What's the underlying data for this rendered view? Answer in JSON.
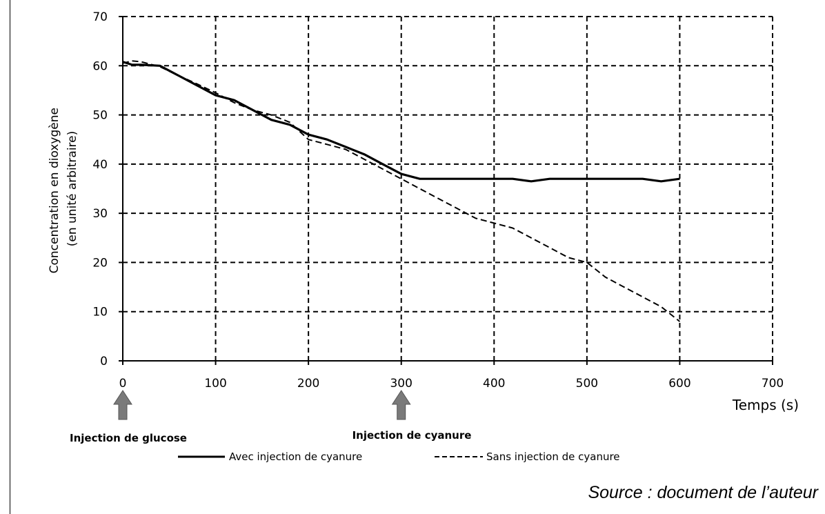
{
  "chart_data": {
    "type": "line",
    "xlabel": "Temps (s)",
    "ylabel_lines": [
      "Concentration en dioxygène",
      "(en unité arbitraire)"
    ],
    "xlim": [
      0,
      700
    ],
    "ylim": [
      0,
      70
    ],
    "xticks": [
      "0",
      "100",
      "200",
      "300",
      "400",
      "500",
      "600",
      "700"
    ],
    "yticks": [
      "0",
      "10",
      "20",
      "30",
      "40",
      "50",
      "60",
      "70"
    ],
    "grid": true,
    "legend_position": "bottom",
    "series": [
      {
        "name": "Avec injection de cyanure",
        "style": "solid",
        "x": [
          0,
          10,
          20,
          40,
          60,
          80,
          100,
          120,
          140,
          160,
          180,
          200,
          220,
          240,
          260,
          280,
          300,
          320,
          340,
          360,
          380,
          400,
          420,
          440,
          460,
          480,
          500,
          520,
          540,
          560,
          580,
          600
        ],
        "y": [
          60.8,
          60.2,
          60.2,
          60,
          58,
          56,
          54,
          53,
          51,
          49,
          48,
          46,
          45,
          43.5,
          42,
          40,
          38,
          37,
          37,
          37,
          37,
          37,
          37,
          36.5,
          37,
          37,
          37,
          37,
          37,
          37,
          36.5,
          37
        ]
      },
      {
        "name": "Sans injection de cyanure",
        "style": "dashed",
        "x": [
          0,
          10,
          20,
          40,
          60,
          80,
          100,
          120,
          140,
          160,
          180,
          200,
          220,
          240,
          260,
          280,
          300,
          320,
          340,
          360,
          380,
          400,
          420,
          440,
          460,
          480,
          500,
          520,
          540,
          560,
          580,
          600
        ],
        "y": [
          60.5,
          61,
          60.8,
          59.8,
          58,
          56.3,
          54.5,
          52.5,
          51,
          50,
          48.5,
          45,
          44,
          43,
          41,
          39,
          37,
          35,
          33,
          31,
          29,
          28,
          27,
          25,
          23,
          21,
          20,
          17,
          15,
          13,
          11,
          8
        ]
      }
    ],
    "annotations": [
      {
        "label": "Injection de glucose",
        "x": 0
      },
      {
        "label": "Injection de cyanure",
        "x": 300
      }
    ]
  },
  "source": "Source : document de l’auteur",
  "colors": {
    "line": "#000000",
    "grid": "#000000",
    "arrow": "#7a7a7a",
    "arrow_edge": "#555555"
  }
}
